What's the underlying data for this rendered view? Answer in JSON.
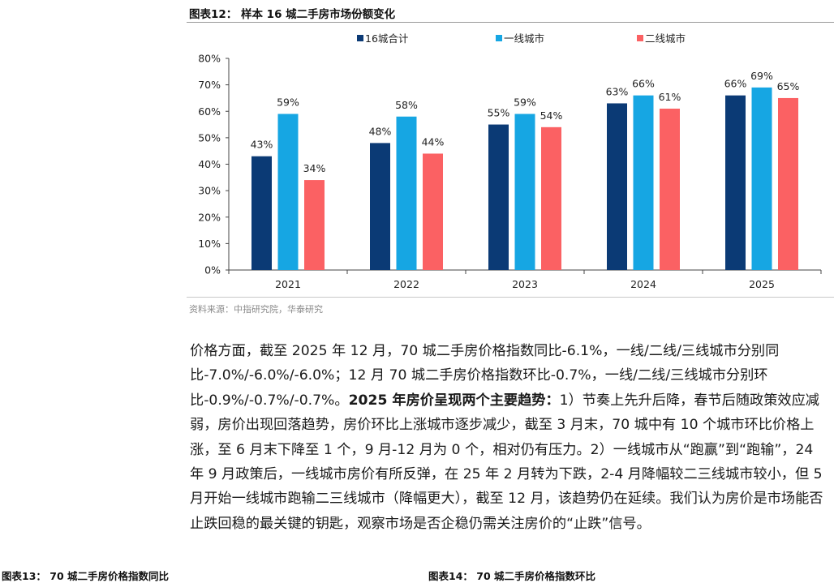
{
  "figure": {
    "title": "图表12： 样本 16 城二手房市场份额变化",
    "source": "资料来源：中指研究院，华泰研究"
  },
  "chart_data": {
    "type": "bar",
    "title": "",
    "xlabel": "",
    "ylabel": "",
    "categories": [
      "2021",
      "2022",
      "2023",
      "2024",
      "2025"
    ],
    "series": [
      {
        "name": "16城合计",
        "color": "#0b3a75",
        "values": [
          43,
          48,
          55,
          63,
          66
        ]
      },
      {
        "name": "一线城市",
        "color": "#16a6e3",
        "values": [
          59,
          58,
          59,
          66,
          69
        ]
      },
      {
        "name": "二线城市",
        "color": "#fb6163",
        "values": [
          34,
          44,
          54,
          61,
          65
        ]
      }
    ],
    "ylim": [
      0,
      80
    ],
    "yticks": [
      0,
      10,
      20,
      30,
      40,
      50,
      60,
      70,
      80
    ],
    "ytick_suffix": "%",
    "data_label_suffix": "%",
    "legend_position": "top",
    "grid": false
  },
  "body": {
    "p1": "价格方面，截至 2025 年 12 月，70 城二手房价格指数同比-6.1%，一线/二线/三线城市分别同比-7.0%/-6.0%/-6.0%；12 月 70 城二手房价格指数环比-0.7%，一线/二线/三线城市分别环比-0.9%/-0.7%/-0.7%。",
    "bold": "2025 年房价呈现两个主要趋势：",
    "p2": "1）节奏上先升后降，春节后随政策效应减弱，房价出现回落趋势，房价环比上涨城市逐步减少，截至 3 月末，70 城中有 10 个城市环比价格上涨，至 6 月末下降至 1 个，9 月-12 月为 0 个，相对仍有压力。2）一线城市从“跑赢”到“跑输”，24 年 9 月政策后，一线城市房价有所反弹，在 25 年 2 月转为下跌，2-4 月降幅较二三线城市较小，但 5 月开始一线城市跑输二三线城市（降幅更大），截至 12 月，该趋势仍在延续。我们认为房价是市场能否止跌回稳的最关键的钥匙，观察市场是否企稳仍需关注房价的“止跌”信号。"
  },
  "bottom": {
    "left_caption": "图表13： 70 城二手房价格指数同比",
    "right_caption": "图表14： 70 城二手房价格指数环比"
  }
}
